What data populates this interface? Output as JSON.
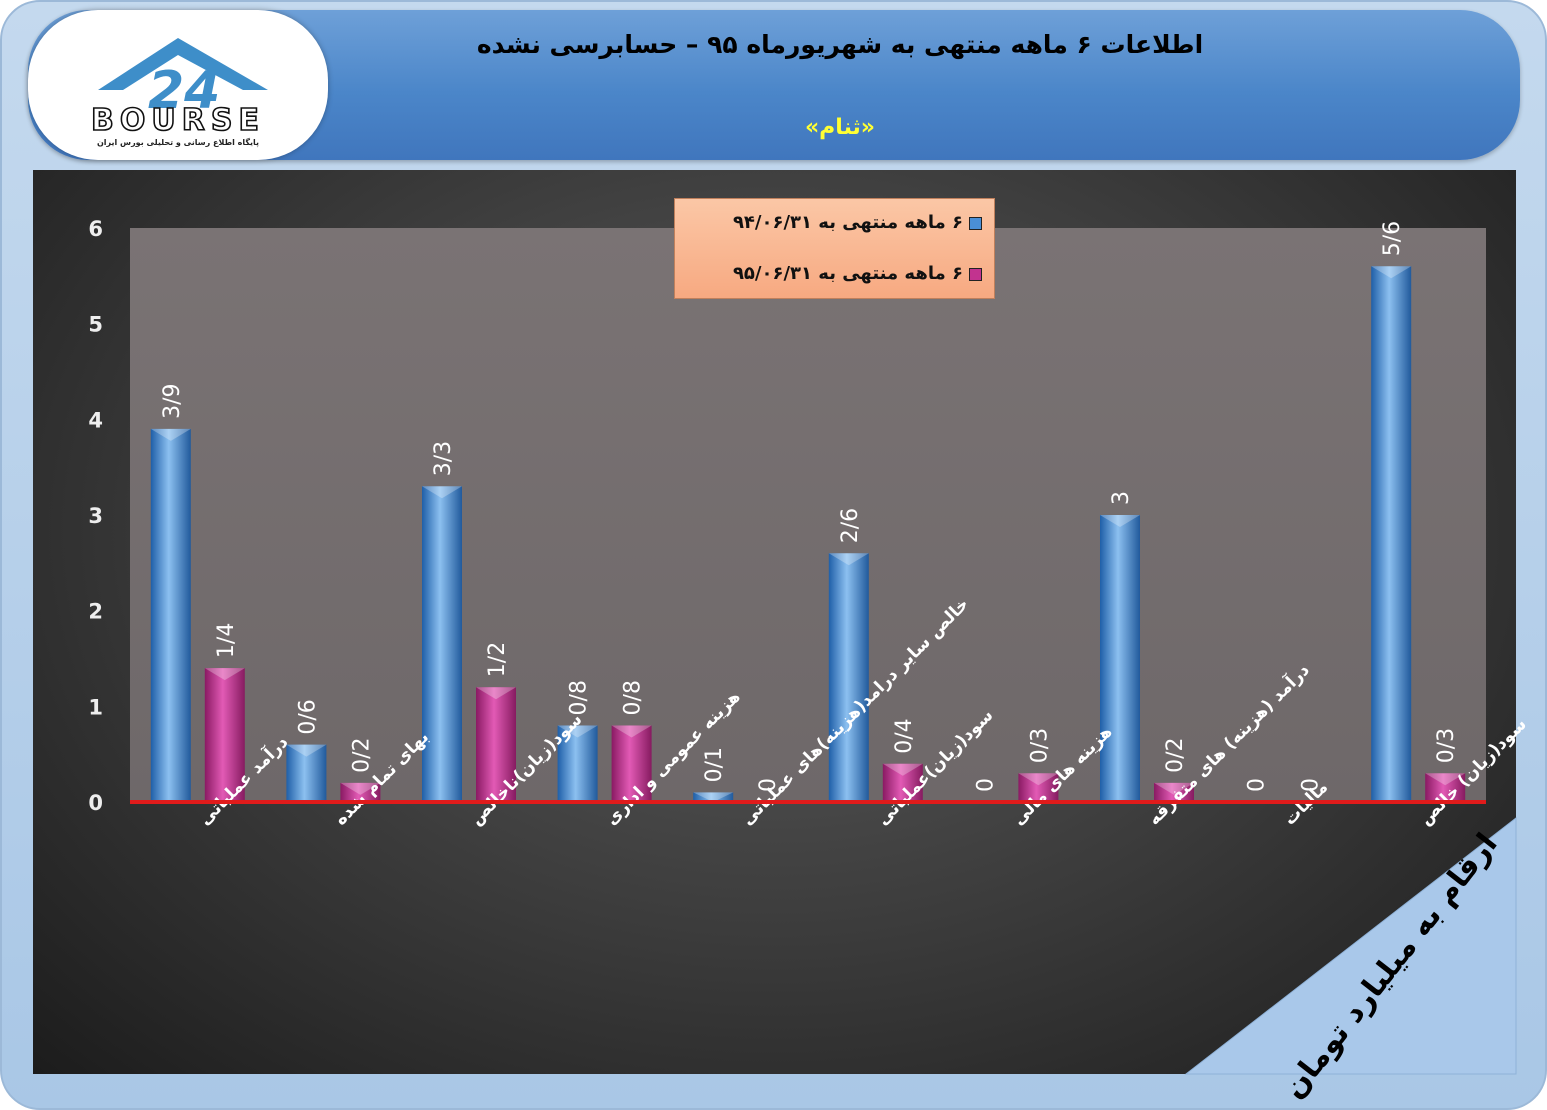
{
  "header": {
    "title": "اطلاعات ۶  ماهه منتهی به شهریورماه ۹۵ – حسابرسی نشده",
    "symbol": "«ثنام»",
    "logo_text": "BOURSE",
    "logo_tagline": "پایگاه اطلاع رسانی و تحلیلی بورس ایران"
  },
  "units_note": "ارقام به میلیارد تومان",
  "colors": {
    "series1": "#4a8fd6",
    "series2": "#c2338f",
    "baseline": "#e01b1b",
    "header": "#4f88c9",
    "title_accent": "#ffff33",
    "legend_bg": "#f9b892"
  },
  "chart_data": {
    "type": "bar",
    "ylim": [
      0,
      6
    ],
    "yticks": [
      0,
      1,
      2,
      3,
      4,
      5,
      6
    ],
    "grid": false,
    "legend_position": "top-center",
    "categories": [
      "درآمد عملیاتی",
      "بهای تمام شده",
      "سود(زیان)ناخالص",
      "هزینه عمومی و اداری",
      "خالص سایر درامد(هزینه)های عملیاتی",
      "سود(زیان)عملیاتی",
      "هزینه های مالی",
      "درآمد (هزینه) های متفرقه",
      "مالیات",
      "سود(زیان) خالص"
    ],
    "series": [
      {
        "name": "۶ ماهه منتهی به ۹۴/۰۶/۳۱",
        "values": [
          3.9,
          0.6,
          3.3,
          0.8,
          0.1,
          2.6,
          0,
          3,
          0,
          5.6
        ],
        "labels": [
          "3/9",
          "0/6",
          "3/3",
          "0/8",
          "0/1",
          "2/6",
          "0",
          "3",
          "0",
          "5/6"
        ]
      },
      {
        "name": "۶ ماهه منتهی به ۹۵/۰۶/۳۱",
        "values": [
          1.4,
          0.2,
          1.2,
          0.8,
          0,
          0.4,
          0.3,
          0.2,
          0,
          0.3
        ],
        "labels": [
          "1/4",
          "0/2",
          "1/2",
          "0/8",
          "0",
          "0/4",
          "0/3",
          "0/2",
          "0",
          "0/3"
        ]
      }
    ]
  }
}
